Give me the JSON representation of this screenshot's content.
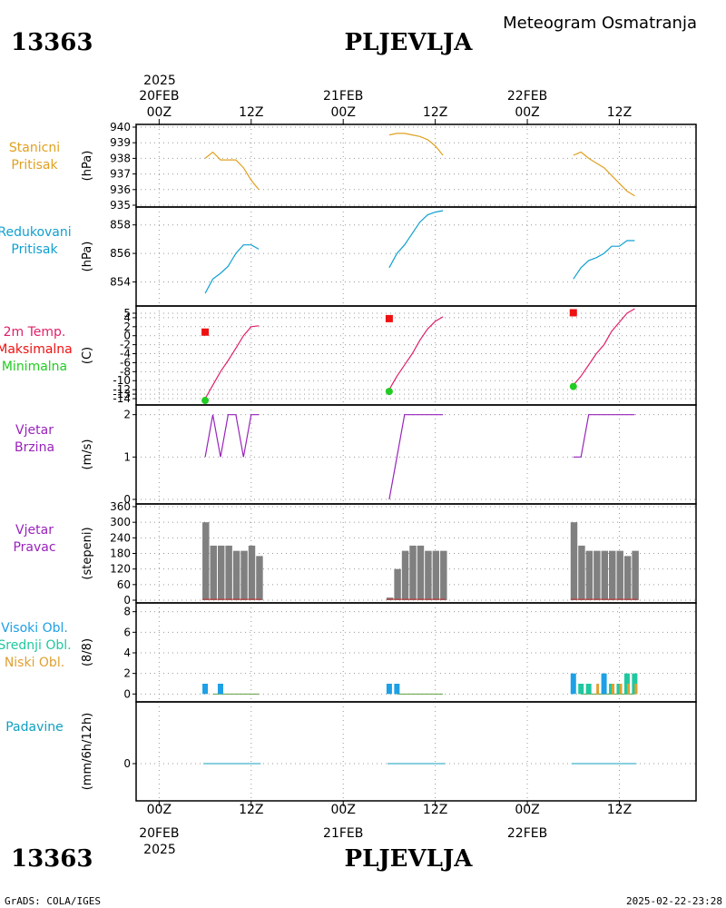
{
  "header": {
    "station_id": "13363",
    "station_name": "PLJEVLJA",
    "product": "Meteogram Osmatranja"
  },
  "footer": {
    "credit": "GrADS: COLA/IGES",
    "timestamp": "2025-02-22-23:28"
  },
  "time_axis": {
    "top_year": "2025",
    "bottom_year": "2025",
    "ticks": [
      {
        "hour": 0,
        "label": "00Z",
        "date": "20FEB"
      },
      {
        "hour": 12,
        "label": "12Z",
        "date": ""
      },
      {
        "hour": 24,
        "label": "00Z",
        "date": "21FEB"
      },
      {
        "hour": 36,
        "label": "12Z",
        "date": ""
      },
      {
        "hour": 48,
        "label": "00Z",
        "date": "22FEB"
      },
      {
        "hour": 60,
        "label": "12Z",
        "date": ""
      }
    ],
    "range_hours": [
      -3,
      70
    ]
  },
  "colors": {
    "station_pressure": "#e0a020",
    "reduced_pressure": "#10a0d0",
    "temp_label": "#e0206a",
    "max_temp": "#ee1111",
    "min_temp": "#22cc22",
    "wind_speed": "#9922bb",
    "wind_dir_bar": "#808080",
    "wind_dir_base": "#cc3333",
    "cloud_high": "#1ea0e6",
    "cloud_mid": "#20c8a0",
    "cloud_low": "#e0a030",
    "precip": "#10a0c0",
    "precip_trace": "#208070"
  },
  "chart_data": [
    {
      "type": "line",
      "title_lines": [
        "Stanicni",
        "Pritisak"
      ],
      "ylabel": "(hPa)",
      "ylim": [
        935,
        940
      ],
      "yticks": [
        935,
        936,
        937,
        938,
        939,
        940
      ],
      "grid": true,
      "series": [
        {
          "x": [
            6,
            7,
            8,
            9,
            10,
            11,
            12,
            13
          ],
          "y": [
            938.0,
            938.4,
            937.9,
            937.9,
            937.9,
            937.4,
            936.6,
            936.0
          ]
        },
        {
          "x": [
            30,
            31,
            32,
            33,
            34,
            35,
            36,
            37
          ],
          "y": [
            939.5,
            939.6,
            939.6,
            939.5,
            939.4,
            939.2,
            938.8,
            938.2
          ]
        },
        {
          "x": [
            54,
            55,
            56,
            57,
            58,
            59,
            60,
            61,
            62
          ],
          "y": [
            938.2,
            938.4,
            938.0,
            937.7,
            937.4,
            936.9,
            936.4,
            935.9,
            935.6
          ]
        }
      ]
    },
    {
      "type": "line",
      "title_lines": [
        "Redukovani",
        "Pritisak"
      ],
      "ylabel": "(hPa)",
      "ylim": [
        852.5,
        859
      ],
      "yticks": [
        854,
        856,
        858
      ],
      "grid": true,
      "series": [
        {
          "x": [
            6,
            7,
            8,
            9,
            10,
            11,
            12,
            13
          ],
          "y": [
            853.2,
            854.2,
            854.6,
            855.1,
            856.0,
            856.6,
            856.6,
            856.3
          ]
        },
        {
          "x": [
            30,
            31,
            32,
            33,
            34,
            35,
            36,
            37
          ],
          "y": [
            855.0,
            856.0,
            856.6,
            857.4,
            858.2,
            858.7,
            858.9,
            859.0
          ]
        },
        {
          "x": [
            54,
            55,
            56,
            57,
            58,
            59,
            60,
            61,
            62
          ],
          "y": [
            854.2,
            855.0,
            855.5,
            855.7,
            856.0,
            856.5,
            856.5,
            856.9,
            856.9
          ]
        }
      ]
    },
    {
      "type": "line",
      "title_lines": [
        "2m Temp.",
        "Maksimalna",
        "Minimalna"
      ],
      "ylabel": "(C)",
      "ylim": [
        -15,
        6
      ],
      "yticks": [
        -14,
        -13,
        -12,
        -10,
        -8,
        -6,
        -4,
        -2,
        0,
        2,
        4,
        5
      ],
      "grid": true,
      "series": [
        {
          "x": [
            6,
            7,
            8,
            9,
            10,
            11,
            12,
            13
          ],
          "y": [
            -14,
            -11,
            -8,
            -5.5,
            -2.8,
            0,
            2,
            2.2
          ]
        },
        {
          "x": [
            30,
            31,
            32,
            33,
            34,
            35,
            36,
            37
          ],
          "y": [
            -12,
            -9,
            -6.5,
            -4,
            -1,
            1.5,
            3.2,
            4.2
          ]
        },
        {
          "x": [
            54,
            55,
            56,
            57,
            58,
            59,
            60,
            61,
            62
          ],
          "y": [
            -11,
            -9,
            -6.5,
            -4,
            -2,
            1,
            3,
            5,
            6
          ]
        }
      ],
      "max_points": [
        {
          "x": 6,
          "y": 0.8
        },
        {
          "x": 30,
          "y": 3.8
        },
        {
          "x": 54,
          "y": 5.1
        }
      ],
      "min_points": [
        {
          "x": 6,
          "y": -14.4
        },
        {
          "x": 30,
          "y": -12.4
        },
        {
          "x": 54,
          "y": -11.3
        }
      ]
    },
    {
      "type": "line",
      "title_lines": [
        "Vjetar",
        "Brzina"
      ],
      "ylabel": "(m/s)",
      "ylim": [
        0,
        2.1
      ],
      "yticks": [
        0,
        1,
        2
      ],
      "grid": true,
      "series": [
        {
          "x": [
            6,
            7,
            8,
            9,
            10,
            11,
            12,
            13
          ],
          "y": [
            1,
            2,
            1,
            2,
            2,
            1,
            2,
            2
          ]
        },
        {
          "x": [
            30,
            31,
            32,
            33,
            34,
            35,
            36,
            37
          ],
          "y": [
            0,
            1,
            2,
            2,
            2,
            2,
            2,
            2
          ]
        },
        {
          "x": [
            54,
            55,
            56,
            57,
            58,
            59,
            60,
            61,
            62
          ],
          "y": [
            1,
            1,
            2,
            2,
            2,
            2,
            2,
            2,
            2
          ]
        }
      ]
    },
    {
      "type": "bar",
      "title_lines": [
        "Vjetar",
        "Pravac"
      ],
      "ylabel": "(stepeni)",
      "ylim": [
        0,
        360
      ],
      "yticks": [
        0,
        60,
        120,
        180,
        240,
        300,
        360
      ],
      "grid": true,
      "x": [
        6,
        7,
        8,
        9,
        10,
        11,
        12,
        13,
        30,
        31,
        32,
        33,
        34,
        35,
        36,
        37,
        54,
        55,
        56,
        57,
        58,
        59,
        60,
        61,
        62
      ],
      "values": [
        300,
        210,
        210,
        210,
        190,
        190,
        210,
        170,
        10,
        120,
        190,
        210,
        210,
        190,
        190,
        190,
        300,
        210,
        190,
        190,
        190,
        190,
        190,
        170,
        190
      ]
    },
    {
      "type": "bar",
      "title_lines": [
        "Visoki Obl.",
        "Srednji Obl.",
        "Niski Obl."
      ],
      "ylabel": "(8/8)",
      "ylim": [
        -0.5,
        8.5
      ],
      "yticks": [
        0,
        2,
        4,
        6,
        8
      ],
      "grid": true,
      "series": [
        {
          "name": "Visoki Obl.",
          "x": [
            6,
            8,
            30,
            31,
            54,
            58
          ],
          "values": [
            1,
            1,
            1,
            1,
            2,
            2
          ]
        },
        {
          "name": "Srednji Obl.",
          "x": [
            55,
            56,
            59,
            60,
            61,
            62
          ],
          "values": [
            1,
            1,
            1,
            1,
            2,
            2
          ]
        },
        {
          "name": "Niski Obl.",
          "x": [
            57,
            59,
            60,
            61,
            62
          ],
          "values": [
            1,
            1,
            1,
            1,
            1
          ]
        }
      ]
    },
    {
      "type": "bar",
      "title_lines": [
        "Padavine"
      ],
      "ylabel": "(mm/6h/12h)",
      "ylim": [
        -3,
        5
      ],
      "yticks": [
        0
      ],
      "grid": true,
      "x": [
        6,
        12,
        30,
        36,
        54,
        60
      ],
      "values": [
        0,
        0,
        0,
        0,
        0,
        0
      ]
    }
  ]
}
